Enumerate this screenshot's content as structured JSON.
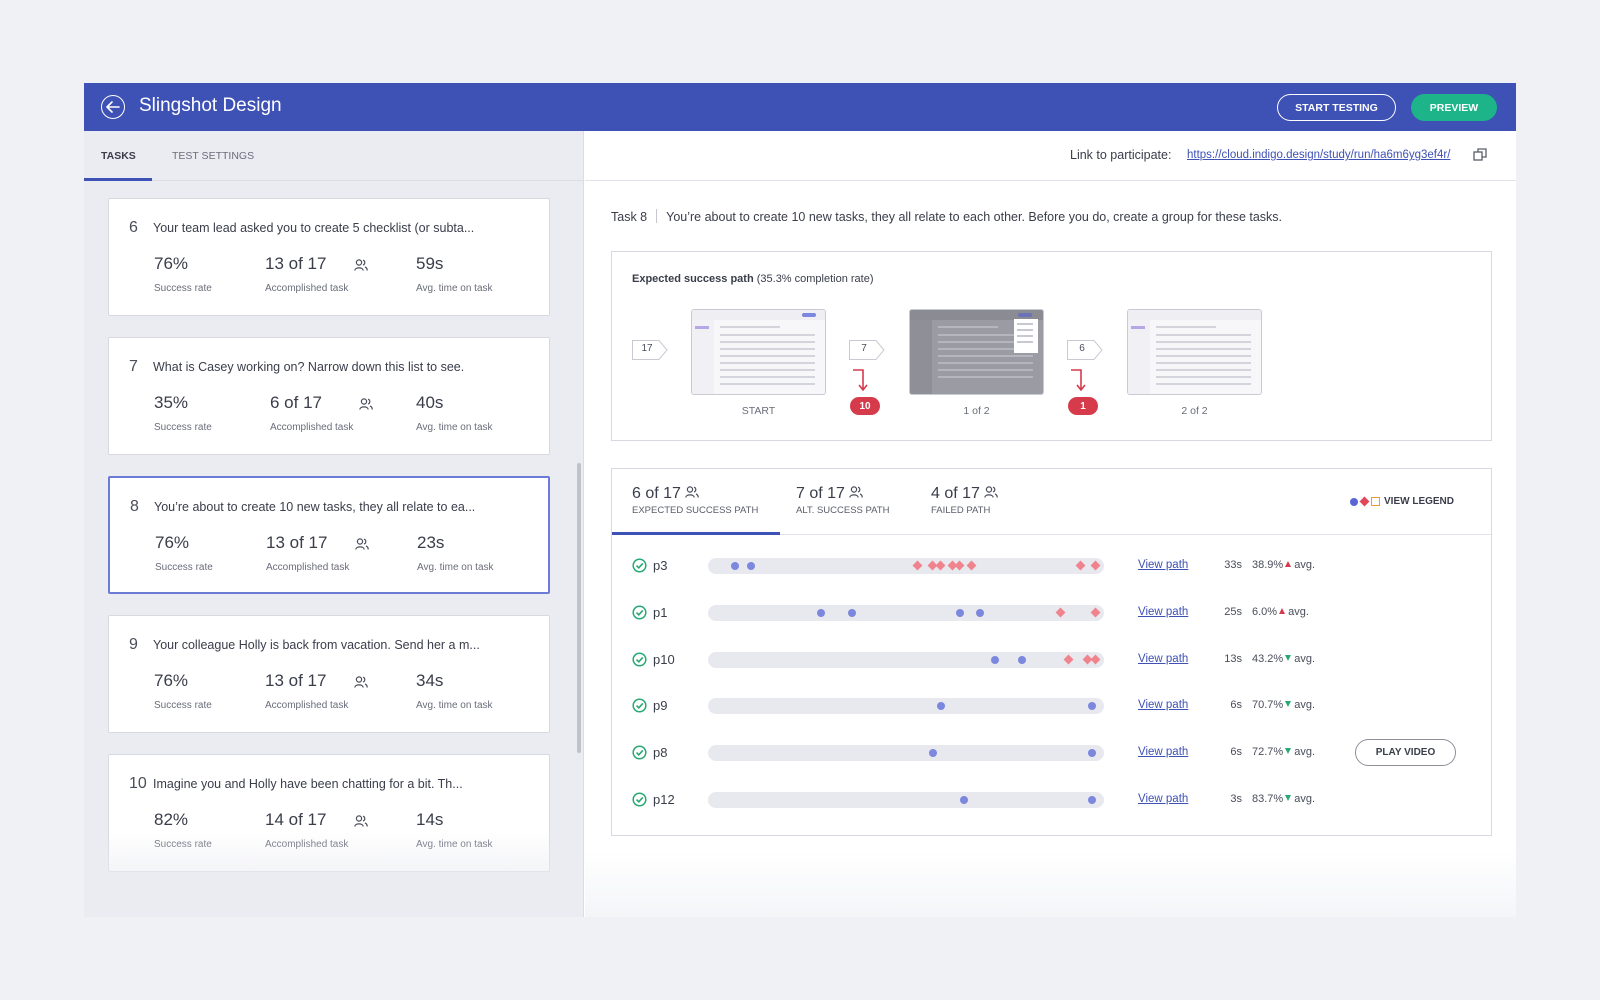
{
  "header": {
    "title": "Slingshot Design",
    "start_testing": "START TESTING",
    "preview": "PREVIEW"
  },
  "left_tabs": {
    "tasks": "TASKS",
    "test_settings": "TEST SETTINGS"
  },
  "tasks": [
    {
      "num": "6",
      "title": "Your team lead asked you to create 5 checklist (or subta...",
      "success": "76%",
      "accomplished": "13 of 17",
      "avg_time": "59s"
    },
    {
      "num": "7",
      "title": "What is Casey working on? Narrow down this list to see.",
      "success": "35%",
      "accomplished": "6 of 17",
      "avg_time": "40s"
    },
    {
      "num": "8",
      "title": "You’re about to create 10 new tasks, they all relate to ea...",
      "success": "76%",
      "accomplished": "13 of 17",
      "avg_time": "23s"
    },
    {
      "num": "9",
      "title": "Your colleague Holly is back from vacation. Send her a m...",
      "success": "76%",
      "accomplished": "13 of 17",
      "avg_time": "34s"
    },
    {
      "num": "10",
      "title": "Imagine you and Holly have been chatting for a bit. Th...",
      "success": "82%",
      "accomplished": "14 of 17",
      "avg_time": "14s"
    }
  ],
  "task_labels": {
    "success": "Success rate",
    "accomplished": "Accomplished task",
    "avg_time": "Avg. time on task"
  },
  "link": {
    "label": "Link to participate:",
    "url": "https://cloud.indigo.design/study/run/ha6m6yg3ef4r/"
  },
  "task_detail": {
    "num": "Task 8",
    "text": "You’re about to create 10 new tasks, they all relate to each other. Before you do, create a group for these tasks."
  },
  "expected_path": {
    "title": "Expected success path",
    "rate": "(35.3% completion rate)",
    "counts": [
      "17",
      "7",
      "6"
    ],
    "screens": [
      "START",
      "1 of 2",
      "2 of 2"
    ],
    "drops": [
      "10",
      "1"
    ]
  },
  "path_tabs": [
    {
      "value": "6 of 17",
      "label": "EXPECTED SUCCESS PATH"
    },
    {
      "value": "7 of 17",
      "label": "ALT. SUCCESS PATH"
    },
    {
      "value": "4 of 17",
      "label": "FAILED PATH"
    }
  ],
  "legend_label": "VIEW LEGEND",
  "participants": [
    {
      "name": "p3",
      "time": "33s",
      "pct": "38.9%",
      "trend": "up",
      "dots": [
        0.06,
        0.1
      ],
      "diamonds": [
        0.53,
        0.57,
        0.59,
        0.62,
        0.64,
        0.67,
        0.95,
        0.99
      ]
    },
    {
      "name": "p1",
      "time": "25s",
      "pct": "6.0%",
      "trend": "up",
      "dots": [
        0.28,
        0.36,
        0.64,
        0.69
      ],
      "diamonds": [
        0.9,
        0.99
      ]
    },
    {
      "name": "p10",
      "time": "13s",
      "pct": "43.2%",
      "trend": "down",
      "dots": [
        0.73,
        0.8
      ],
      "diamonds": [
        0.92,
        0.97,
        0.99
      ]
    },
    {
      "name": "p9",
      "time": "6s",
      "pct": "70.7%",
      "trend": "down",
      "dots": [
        0.59,
        0.98
      ],
      "diamonds": []
    },
    {
      "name": "p8",
      "time": "6s",
      "pct": "72.7%",
      "trend": "down",
      "dots": [
        0.57,
        0.98
      ],
      "diamonds": []
    },
    {
      "name": "p12",
      "time": "3s",
      "pct": "83.7%",
      "trend": "down",
      "dots": [
        0.65,
        0.98
      ],
      "diamonds": []
    }
  ],
  "row_labels": {
    "view_path": "View path",
    "avg": "avg.",
    "play_video": "PLAY VIDEO"
  },
  "colors": {
    "brand": "#3e51b5",
    "accent_green": "#1db48a",
    "drop_red": "#d63b4c",
    "dot_blue": "#7c87de",
    "diamond_pink": "#f0848e"
  }
}
